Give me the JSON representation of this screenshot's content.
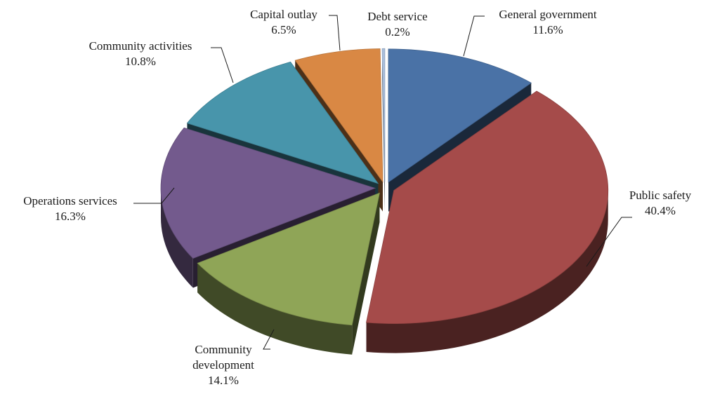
{
  "chart_data": {
    "type": "pie",
    "title": "",
    "style": "3d-exploded",
    "legend": "none",
    "slices": [
      {
        "name": "General government",
        "label_lines": [
          "General  government"
        ],
        "pct_label": "11.6%",
        "value": 11.6,
        "color": "#4a72a6"
      },
      {
        "name": "Public safety",
        "label_lines": [
          "Public safety"
        ],
        "pct_label": "40.4%",
        "value": 40.4,
        "color": "#a54b4a"
      },
      {
        "name": "Community development",
        "label_lines": [
          "Community",
          "development"
        ],
        "pct_label": "14.1%",
        "value": 14.1,
        "color": "#8fa557"
      },
      {
        "name": "Operations services",
        "label_lines": [
          "Operations services"
        ],
        "pct_label": "16.3%",
        "value": 16.3,
        "color": "#735a8d"
      },
      {
        "name": "Community activities",
        "label_lines": [
          "Community  activities"
        ],
        "pct_label": "10.8%",
        "value": 10.8,
        "color": "#4895ab"
      },
      {
        "name": "Capital outlay",
        "label_lines": [
          "Capital outlay"
        ],
        "pct_label": "6.5%",
        "value": 6.5,
        "color": "#d98844"
      },
      {
        "name": "Debt service",
        "label_lines": [
          "Debt service"
        ],
        "pct_label": "0.2%",
        "value": 0.2,
        "color": "#a9bfdc"
      }
    ]
  }
}
